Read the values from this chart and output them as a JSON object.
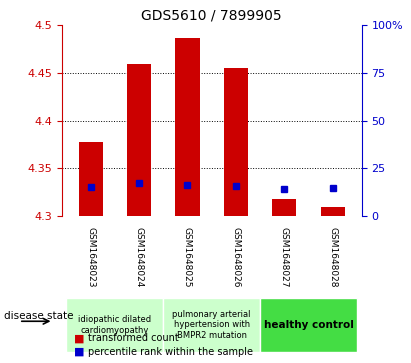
{
  "title": "GDS5610 / 7899905",
  "samples": [
    "GSM1648023",
    "GSM1648024",
    "GSM1648025",
    "GSM1648026",
    "GSM1648027",
    "GSM1648028"
  ],
  "red_top": [
    4.378,
    4.46,
    4.487,
    4.455,
    4.318,
    4.309
  ],
  "red_bottom": [
    4.3,
    4.3,
    4.3,
    4.3,
    4.3,
    4.3
  ],
  "blue_y": [
    4.33,
    4.335,
    4.332,
    4.331,
    4.328,
    4.329
  ],
  "ylim": [
    4.3,
    4.5
  ],
  "yticks": [
    4.3,
    4.35,
    4.4,
    4.45,
    4.5
  ],
  "ytick_labels": [
    "4.3",
    "4.35",
    "4.4",
    "4.45",
    "4.5"
  ],
  "right_yticks": [
    0,
    25,
    50,
    75,
    100
  ],
  "right_ytick_labels": [
    "0",
    "25",
    "50",
    "75",
    "100%"
  ],
  "left_axis_color": "#cc0000",
  "right_axis_color": "#0000cc",
  "bar_color": "#cc0000",
  "marker_color": "#0000cc",
  "grid_color": "#000000",
  "bg_color": "#ffffff",
  "sample_bg_color": "#cccccc",
  "group1_samples": [
    0,
    1
  ],
  "group2_samples": [
    2,
    3
  ],
  "group3_samples": [
    4,
    5
  ],
  "group1_label": "idiopathic dilated\ncardiomyopathy",
  "group2_label": "pulmonary arterial\nhypertension with\nBMPR2 mutation",
  "group3_label": "healthy control",
  "group1_color": "#ccffcc",
  "group2_color": "#ccffcc",
  "group3_color": "#44dd44",
  "disease_state_label": "disease state",
  "legend1_label": "transformed count",
  "legend2_label": "percentile rank within the sample",
  "bar_width": 0.5
}
